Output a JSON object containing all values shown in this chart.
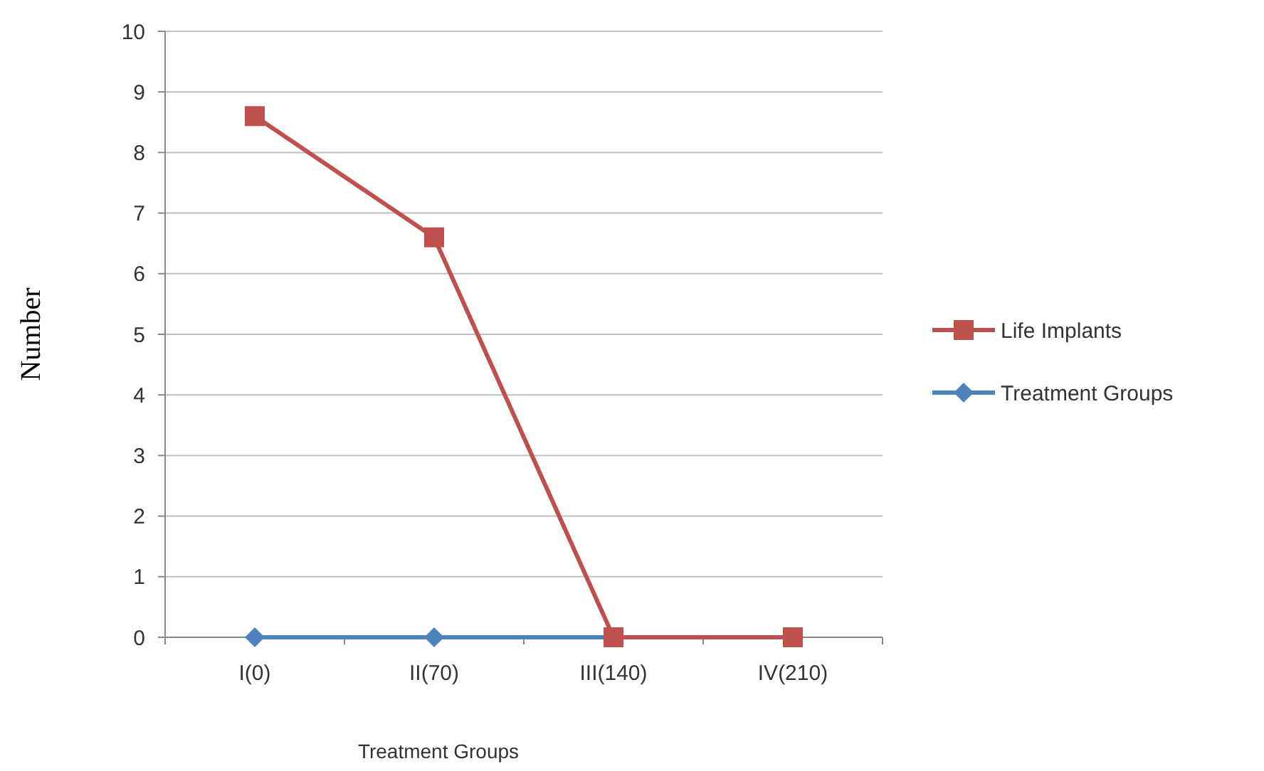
{
  "chart_data": {
    "type": "line",
    "xlabel": "Treatment Groups",
    "ylabel": "Number",
    "categories": [
      "I(0)",
      "II(70)",
      "III(140)",
      "IV(210)"
    ],
    "series": [
      {
        "name": "Life Implants",
        "color": "#c0504d",
        "marker": "square",
        "values": [
          8.6,
          6.6,
          0,
          0
        ]
      },
      {
        "name": "Treatment Groups",
        "color": "#4f81bd",
        "marker": "diamond",
        "values": [
          0,
          0,
          0,
          null
        ]
      }
    ],
    "ylim": [
      0,
      10
    ],
    "yticks": [
      0,
      1,
      2,
      3,
      4,
      5,
      6,
      7,
      8,
      9,
      10
    ],
    "grid": "y",
    "legend": "right"
  }
}
